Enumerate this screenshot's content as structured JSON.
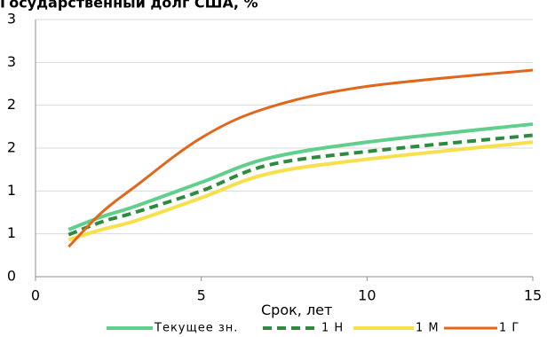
{
  "chart_data": {
    "type": "line",
    "title": "Государственный долг США, %",
    "xlabel": "Срок, лет",
    "ylabel": "",
    "xlim": [
      0,
      15
    ],
    "ylim": [
      0,
      3
    ],
    "x_ticks": [
      "0",
      "5",
      "10",
      "15"
    ],
    "y_ticks": [
      "0",
      "1",
      "1",
      "2",
      "2",
      "3",
      "3"
    ],
    "grid": "horizontal",
    "legend_position": "bottom",
    "series": [
      {
        "name": "Текущее зн.",
        "color": "#5fcf8b",
        "style": "solid-thick",
        "x": [
          1,
          2,
          3,
          5,
          7,
          10,
          15
        ],
        "y": [
          0.55,
          0.7,
          0.82,
          1.1,
          1.38,
          1.57,
          1.78
        ]
      },
      {
        "name": "1 Н",
        "color": "#2e8b3e",
        "style": "dashed",
        "x": [
          1,
          2,
          3,
          5,
          7,
          10,
          15
        ],
        "y": [
          0.49,
          0.64,
          0.75,
          1.0,
          1.3,
          1.46,
          1.65
        ]
      },
      {
        "name": "1 М",
        "color": "#f7e04b",
        "style": "solid-thick",
        "x": [
          1,
          2,
          3,
          5,
          7,
          10,
          15
        ],
        "y": [
          0.43,
          0.55,
          0.65,
          0.92,
          1.2,
          1.37,
          1.57
        ]
      },
      {
        "name": "1 Г",
        "color": "#e0671b",
        "style": "solid",
        "x": [
          1,
          2,
          3,
          5,
          7,
          10,
          15
        ],
        "y": [
          0.35,
          0.75,
          1.05,
          1.62,
          1.97,
          2.22,
          2.41
        ]
      }
    ]
  }
}
